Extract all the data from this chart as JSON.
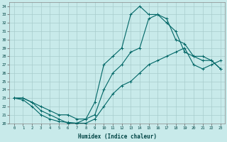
{
  "title": "",
  "xlabel": "Humidex (Indice chaleur)",
  "background_color": "#c8eaea",
  "grid_color": "#a8cccc",
  "line_color": "#006666",
  "xlim": [
    -0.5,
    23.5
  ],
  "ylim": [
    20,
    34.5
  ],
  "xticks": [
    0,
    1,
    2,
    3,
    4,
    5,
    6,
    7,
    8,
    9,
    10,
    11,
    12,
    13,
    14,
    15,
    16,
    17,
    18,
    19,
    20,
    21,
    22,
    23
  ],
  "yticks": [
    20,
    21,
    22,
    23,
    24,
    25,
    26,
    27,
    28,
    29,
    30,
    31,
    32,
    33,
    34
  ],
  "line1_x": [
    0,
    1,
    2,
    3,
    4,
    5,
    6,
    7,
    8,
    9,
    10,
    11,
    12,
    13,
    14,
    15,
    16,
    17,
    18,
    19,
    20,
    21,
    22,
    23
  ],
  "line1_y": [
    23,
    22.8,
    22,
    21,
    20.5,
    20.2,
    20.1,
    20.0,
    20.0,
    20.5,
    22,
    23.5,
    24.5,
    25,
    26,
    27,
    27.5,
    28,
    28.5,
    29,
    27,
    26.5,
    27,
    27.5
  ],
  "line2_x": [
    0,
    1,
    2,
    3,
    4,
    5,
    6,
    7,
    8,
    9,
    10,
    11,
    12,
    13,
    14,
    15,
    16,
    17,
    18,
    19,
    20,
    21,
    22,
    23
  ],
  "line2_y": [
    23,
    23,
    22.5,
    22,
    21.5,
    21,
    21,
    20.5,
    20.5,
    21,
    24,
    26,
    27,
    28.5,
    29,
    32.5,
    33,
    32.5,
    30,
    29.5,
    28,
    27.5,
    27.5,
    26.5
  ],
  "line3_x": [
    0,
    1,
    2,
    3,
    4,
    5,
    6,
    7,
    8,
    9,
    10,
    11,
    12,
    13,
    14,
    15,
    16,
    17,
    18,
    19,
    20,
    21,
    22,
    23
  ],
  "line3_y": [
    23,
    23,
    22.5,
    21.5,
    21,
    20.5,
    20,
    20,
    20.5,
    22.5,
    27,
    28,
    29,
    33,
    34,
    33,
    33,
    32,
    31,
    28.5,
    28,
    28,
    27.5,
    26.5
  ]
}
